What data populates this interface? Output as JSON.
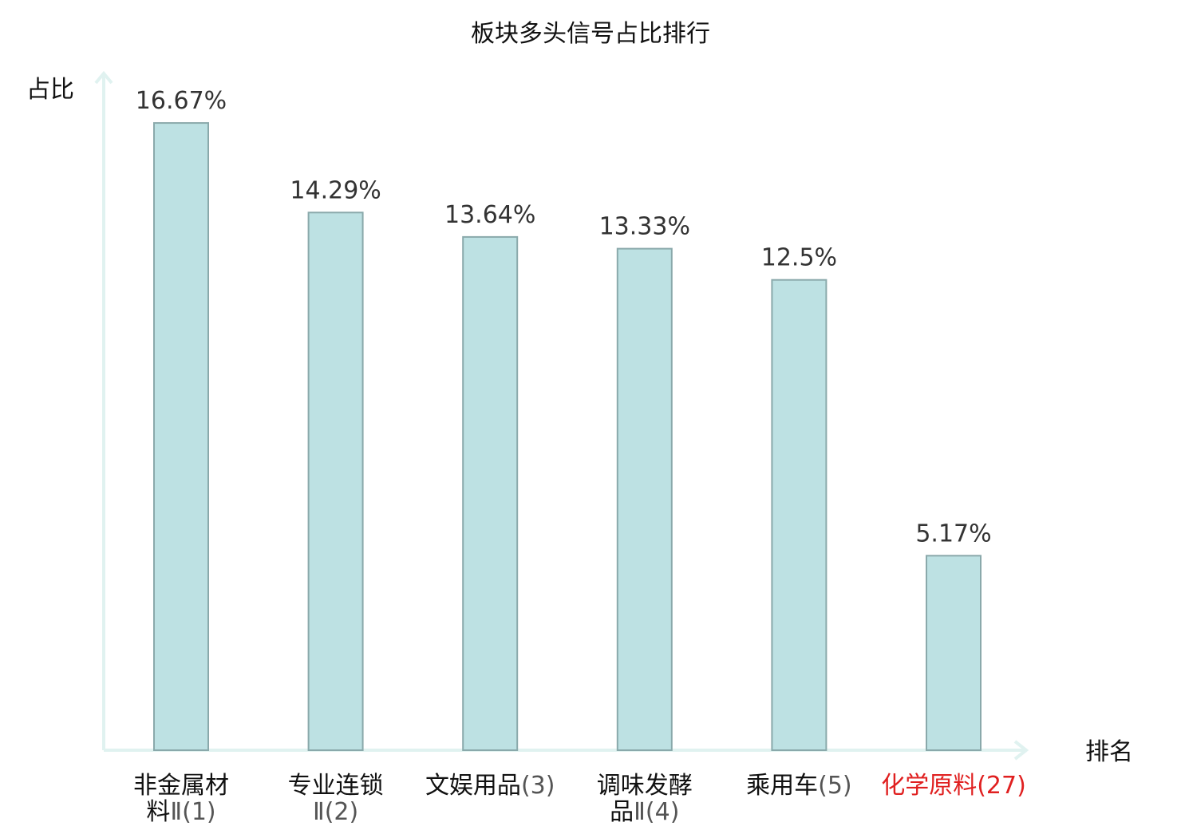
{
  "chart_data": {
    "type": "bar",
    "title": "板块多头信号占比排行",
    "ylabel": "占比",
    "xlabel": "排名",
    "ylim": [
      0,
      18
    ],
    "grid": false,
    "categories": [
      {
        "lines": [
          "非金属材",
          "料Ⅱ(1)"
        ],
        "highlight": false
      },
      {
        "lines": [
          "专业连锁",
          "Ⅱ(2)"
        ],
        "highlight": false
      },
      {
        "lines": [
          "文娱用品(3)"
        ],
        "highlight": false
      },
      {
        "lines": [
          "调味发酵",
          "品Ⅱ(4)"
        ],
        "highlight": false
      },
      {
        "lines": [
          "乘用车(5)"
        ],
        "highlight": false
      },
      {
        "lines": [
          "化学原料(27)"
        ],
        "highlight": true
      }
    ],
    "values": [
      16.67,
      14.29,
      13.64,
      13.33,
      12.5,
      5.17
    ],
    "value_labels": [
      "16.67%",
      "14.29%",
      "13.64%",
      "13.33%",
      "12.5%",
      "5.17%"
    ]
  },
  "colors": {
    "bar_fill": "#bde1e3",
    "bar_stroke": "#8aa9ab",
    "axis": "#e0f2f0",
    "highlight_text": "#e02020",
    "text": "#111111",
    "value_text": "#333333"
  }
}
